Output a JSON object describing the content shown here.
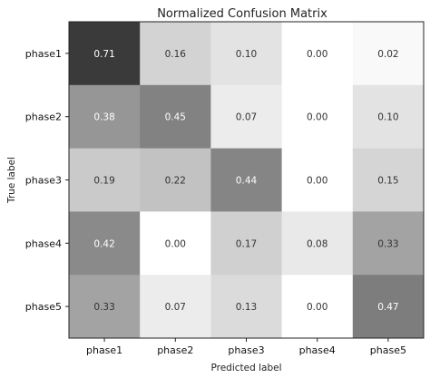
{
  "chart_data": {
    "type": "heatmap",
    "title": "Normalized Confusion Matrix",
    "xlabel": "Predicted label",
    "ylabel": "True label",
    "x_categories": [
      "phase1",
      "phase2",
      "phase3",
      "phase4",
      "phase5"
    ],
    "y_categories": [
      "phase1",
      "phase2",
      "phase3",
      "phase4",
      "phase5"
    ],
    "values": [
      [
        0.71,
        0.16,
        0.1,
        0.0,
        0.02
      ],
      [
        0.38,
        0.45,
        0.07,
        0.0,
        0.1
      ],
      [
        0.19,
        0.22,
        0.44,
        0.0,
        0.15
      ],
      [
        0.42,
        0.0,
        0.17,
        0.08,
        0.33
      ],
      [
        0.33,
        0.07,
        0.13,
        0.0,
        0.47
      ]
    ],
    "value_labels": [
      [
        "0.71",
        "0.16",
        "0.10",
        "0.00",
        "0.02"
      ],
      [
        "0.38",
        "0.45",
        "0.07",
        "0.00",
        "0.10"
      ],
      [
        "0.19",
        "0.22",
        "0.44",
        "0.00",
        "0.15"
      ],
      [
        "0.42",
        "0.00",
        "0.17",
        "0.08",
        "0.33"
      ],
      [
        "0.33",
        "0.07",
        "0.13",
        "0.00",
        "0.47"
      ]
    ],
    "colormap": "grays",
    "color_range": [
      0,
      0.71
    ],
    "colors": {
      "low": "#ffffff",
      "high": "#3a3a3a",
      "text_dark_cell": "#ffffff",
      "text_light_cell": "#333333"
    }
  }
}
